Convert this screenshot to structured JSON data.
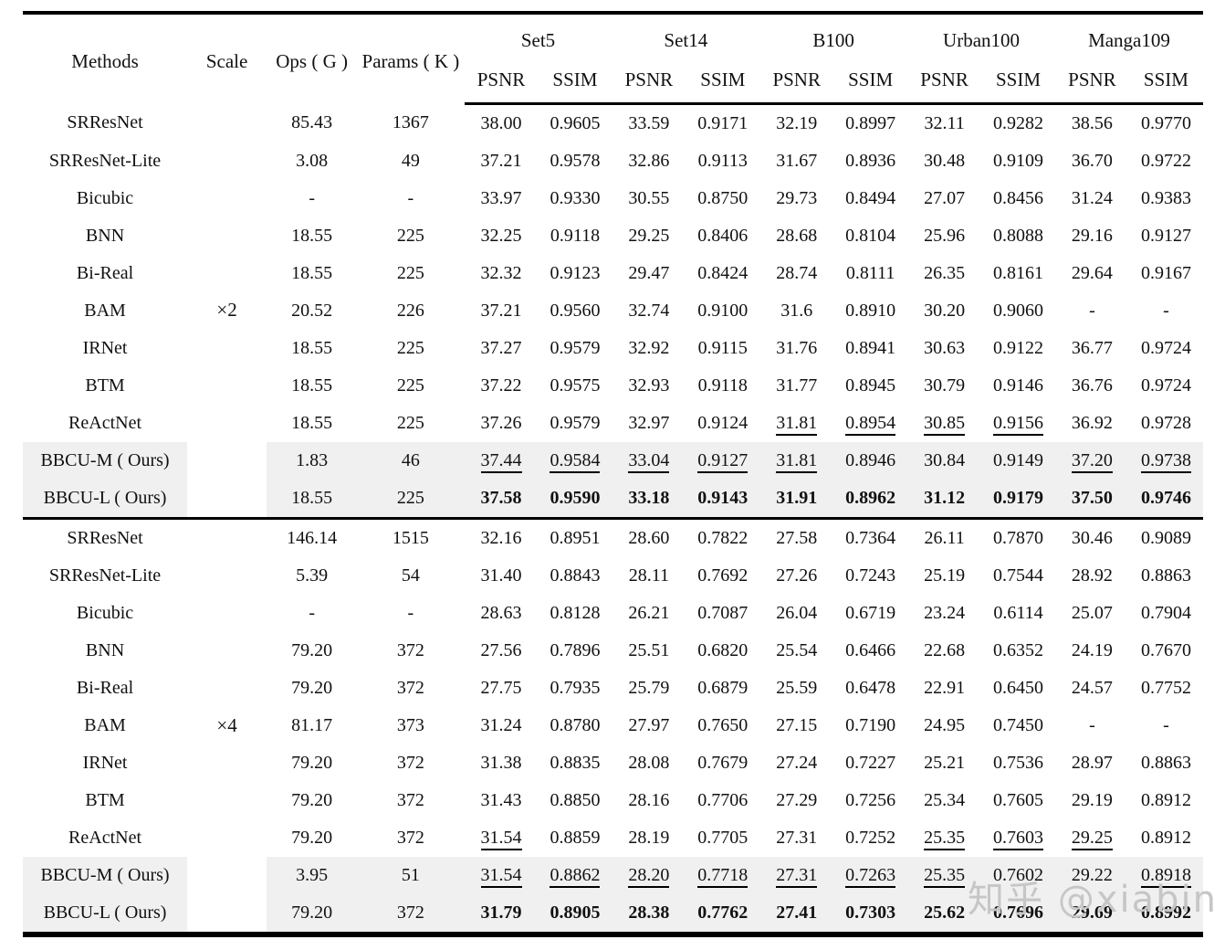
{
  "header": {
    "methods": "Methods",
    "scale": "Scale",
    "ops": "Ops ( G )",
    "params": "Params ( K )",
    "datasets": [
      "Set5",
      "Set14",
      "B100",
      "Urban100",
      "Manga109"
    ],
    "sub_metrics": [
      "PSNR",
      "SSIM"
    ]
  },
  "table": {
    "groups": [
      {
        "scale": "×2",
        "rows": [
          {
            "method": "SRResNet",
            "ops": "85.43",
            "params": "1367",
            "values": [
              "38.00",
              "0.9605",
              "33.59",
              "0.9171",
              "32.19",
              "0.8997",
              "32.11",
              "0.9282",
              "38.56",
              "0.9770"
            ]
          },
          {
            "method": "SRResNet-Lite",
            "ops": "3.08",
            "params": "49",
            "values": [
              "37.21",
              "0.9578",
              "32.86",
              "0.9113",
              "31.67",
              "0.8936",
              "30.48",
              "0.9109",
              "36.70",
              "0.9722"
            ]
          },
          {
            "method": "Bicubic",
            "ops": "-",
            "params": "-",
            "values": [
              "33.97",
              "0.9330",
              "30.55",
              "0.8750",
              "29.73",
              "0.8494",
              "27.07",
              "0.8456",
              "31.24",
              "0.9383"
            ]
          },
          {
            "method": "BNN",
            "ops": "18.55",
            "params": "225",
            "values": [
              "32.25",
              "0.9118",
              "29.25",
              "0.8406",
              "28.68",
              "0.8104",
              "25.96",
              "0.8088",
              "29.16",
              "0.9127"
            ]
          },
          {
            "method": "Bi-Real",
            "ops": "18.55",
            "params": "225",
            "values": [
              "32.32",
              "0.9123",
              "29.47",
              "0.8424",
              "28.74",
              "0.8111",
              "26.35",
              "0.8161",
              "29.64",
              "0.9167"
            ]
          },
          {
            "method": "BAM",
            "ops": "20.52",
            "params": "226",
            "values": [
              "37.21",
              "0.9560",
              "32.74",
              "0.9100",
              "31.6",
              "0.8910",
              "30.20",
              "0.9060",
              "-",
              "-"
            ]
          },
          {
            "method": "IRNet",
            "ops": "18.55",
            "params": "225",
            "values": [
              "37.27",
              "0.9579",
              "32.92",
              "0.9115",
              "31.76",
              "0.8941",
              "30.63",
              "0.9122",
              "36.77",
              "0.9724"
            ]
          },
          {
            "method": "BTM",
            "ops": "18.55",
            "params": "225",
            "values": [
              "37.22",
              "0.9575",
              "32.93",
              "0.9118",
              "31.77",
              "0.8945",
              "30.79",
              "0.9146",
              "36.76",
              "0.9724"
            ]
          },
          {
            "method": "ReActNet",
            "ops": "18.55",
            "params": "225",
            "values": [
              "37.26",
              "0.9579",
              "32.97",
              "0.9124",
              "31.81",
              "0.8954",
              "30.85",
              "0.9156",
              "36.92",
              "0.9728"
            ],
            "fmt": [
              "",
              "",
              "",
              "",
              "u",
              "u",
              "u",
              "u",
              "",
              ""
            ]
          },
          {
            "method": "BBCU-M ( Ours)",
            "ops": "1.83",
            "params": "46",
            "values": [
              "37.44",
              "0.9584",
              "33.04",
              "0.9127",
              "31.81",
              "0.8946",
              "30.84",
              "0.9149",
              "37.20",
              "0.9738"
            ],
            "fmt": [
              "u",
              "u",
              "u",
              "u",
              "u",
              "",
              "",
              "",
              "u",
              "u"
            ],
            "shaded": true
          },
          {
            "method": "BBCU-L ( Ours)",
            "ops": "18.55",
            "params": "225",
            "values": [
              "37.58",
              "0.9590",
              "33.18",
              "0.9143",
              "31.91",
              "0.8962",
              "31.12",
              "0.9179",
              "37.50",
              "0.9746"
            ],
            "fmt": [
              "b",
              "b",
              "b",
              "b",
              "b",
              "b",
              "b",
              "b",
              "b",
              "b"
            ],
            "shaded": true
          }
        ]
      },
      {
        "scale": "×4",
        "rows": [
          {
            "method": "SRResNet",
            "ops": "146.14",
            "params": "1515",
            "values": [
              "32.16",
              "0.8951",
              "28.60",
              "0.7822",
              "27.58",
              "0.7364",
              "26.11",
              "0.7870",
              "30.46",
              "0.9089"
            ]
          },
          {
            "method": "SRResNet-Lite",
            "ops": "5.39",
            "params": "54",
            "values": [
              "31.40",
              "0.8843",
              "28.11",
              "0.7692",
              "27.26",
              "0.7243",
              "25.19",
              "0.7544",
              "28.92",
              "0.8863"
            ]
          },
          {
            "method": "Bicubic",
            "ops": "-",
            "params": "-",
            "values": [
              "28.63",
              "0.8128",
              "26.21",
              "0.7087",
              "26.04",
              "0.6719",
              "23.24",
              "0.6114",
              "25.07",
              "0.7904"
            ]
          },
          {
            "method": "BNN",
            "ops": "79.20",
            "params": "372",
            "values": [
              "27.56",
              "0.7896",
              "25.51",
              "0.6820",
              "25.54",
              "0.6466",
              "22.68",
              "0.6352",
              "24.19",
              "0.7670"
            ]
          },
          {
            "method": "Bi-Real",
            "ops": "79.20",
            "params": "372",
            "values": [
              "27.75",
              "0.7935",
              "25.79",
              "0.6879",
              "25.59",
              "0.6478",
              "22.91",
              "0.6450",
              "24.57",
              "0.7752"
            ]
          },
          {
            "method": "BAM",
            "ops": "81.17",
            "params": "373",
            "values": [
              "31.24",
              "0.8780",
              "27.97",
              "0.7650",
              "27.15",
              "0.7190",
              "24.95",
              "0.7450",
              "-",
              "-"
            ]
          },
          {
            "method": "IRNet",
            "ops": "79.20",
            "params": "372",
            "values": [
              "31.38",
              "0.8835",
              "28.08",
              "0.7679",
              "27.24",
              "0.7227",
              "25.21",
              "0.7536",
              "28.97",
              "0.8863"
            ]
          },
          {
            "method": "BTM",
            "ops": "79.20",
            "params": "372",
            "values": [
              "31.43",
              "0.8850",
              "28.16",
              "0.7706",
              "27.29",
              "0.7256",
              "25.34",
              "0.7605",
              "29.19",
              "0.8912"
            ]
          },
          {
            "method": "ReActNet",
            "ops": "79.20",
            "params": "372",
            "values": [
              "31.54",
              "0.8859",
              "28.19",
              "0.7705",
              "27.31",
              "0.7252",
              "25.35",
              "0.7603",
              "29.25",
              "0.8912"
            ],
            "fmt": [
              "u",
              "",
              "",
              "",
              "",
              "",
              "u",
              "u",
              "u",
              ""
            ]
          },
          {
            "method": "BBCU-M ( Ours)",
            "ops": "3.95",
            "params": "51",
            "values": [
              "31.54",
              "0.8862",
              "28.20",
              "0.7718",
              "27.31",
              "0.7263",
              "25.35",
              "0.7602",
              "29.22",
              "0.8918"
            ],
            "fmt": [
              "u",
              "u",
              "u",
              "u",
              "u",
              "u",
              "u",
              "",
              "",
              "u"
            ],
            "shaded": true
          },
          {
            "method": "BBCU-L ( Ours)",
            "ops": "79.20",
            "params": "372",
            "values": [
              "31.79",
              "0.8905",
              "28.38",
              "0.7762",
              "27.41",
              "0.7303",
              "25.62",
              "0.7696",
              "29.69",
              "0.8992"
            ],
            "fmt": [
              "b",
              "b",
              "b",
              "b",
              "b",
              "b",
              "b",
              "b",
              "b",
              "b"
            ],
            "shaded": true
          }
        ]
      }
    ]
  },
  "watermark": "知乎 @xiabin"
}
